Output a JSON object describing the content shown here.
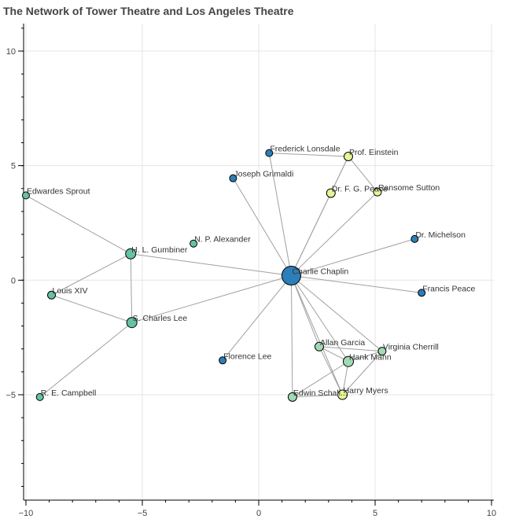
{
  "chart_data": {
    "type": "network",
    "title": "The Network of Tower Theatre and Los Angeles Theatre",
    "xlim": [
      -10.1,
      10.1
    ],
    "ylim": [
      -9.6,
      11.2
    ],
    "x_ticks": [
      -10,
      -5,
      0,
      5,
      10
    ],
    "y_ticks": [
      -5,
      0,
      5,
      10
    ],
    "x_tick_labels": [
      "−10",
      "−5",
      "0",
      "5",
      "10"
    ],
    "y_tick_labels": [
      "−5",
      "0",
      "5",
      "10"
    ],
    "grid": true,
    "nodes": [
      {
        "id": "Charlie Chaplin",
        "label": "Charlie Chaplin",
        "x": 1.4,
        "y": 0.2,
        "size": 12,
        "color": "#2c7fb8"
      },
      {
        "id": "Frederick Lonsdale",
        "label": "Frederick Lonsdale",
        "x": 0.45,
        "y": 5.55,
        "size": 4.5,
        "color": "#2c7fb8"
      },
      {
        "id": "Prof. Einstein",
        "label": "Prof. Einstein",
        "x": 3.85,
        "y": 5.4,
        "size": 5.5,
        "color": "#e6f598"
      },
      {
        "id": "Joseph Grimaldi",
        "label": "Joseph Grimaldi",
        "x": -1.1,
        "y": 4.45,
        "size": 4.5,
        "color": "#2c7fb8"
      },
      {
        "id": "Dr. F. G. Peace",
        "label": "Dr. F. G. Peace",
        "x": 3.1,
        "y": 3.8,
        "size": 5.5,
        "color": "#e6f598"
      },
      {
        "id": "Ransome Sutton",
        "label": "Ransome Sutton",
        "x": 5.1,
        "y": 3.85,
        "size": 5,
        "color": "#e6f598"
      },
      {
        "id": "Edwardes Sprout",
        "label": "Edwardes Sprout",
        "x": -10.0,
        "y": 3.7,
        "size": 4.5,
        "color": "#66c2a4"
      },
      {
        "id": "Dr. Michelson",
        "label": "Dr. Michelson",
        "x": 6.7,
        "y": 1.8,
        "size": 4.5,
        "color": "#2c7fb8"
      },
      {
        "id": "N. P. Alexander",
        "label": "N. P. Alexander",
        "x": -2.8,
        "y": 1.6,
        "size": 4.5,
        "color": "#66c2a4"
      },
      {
        "id": "H. L. Gumbiner",
        "label": "H. L. Gumbiner",
        "x": -5.5,
        "y": 1.15,
        "size": 6.5,
        "color": "#66c2a4"
      },
      {
        "id": "Louis XIV",
        "label": "Louis XIV",
        "x": -8.9,
        "y": -0.65,
        "size": 5,
        "color": "#66c2a4"
      },
      {
        "id": "Francis Peace",
        "label": "Francis Peace",
        "x": 7.0,
        "y": -0.55,
        "size": 4.5,
        "color": "#2c7fb8"
      },
      {
        "id": "S. Charles Lee",
        "label": "S. Charles Lee",
        "x": -5.45,
        "y": -1.85,
        "size": 6.5,
        "color": "#66c2a4"
      },
      {
        "id": "Allan Garcia",
        "label": "Allan Garcia",
        "x": 2.6,
        "y": -2.9,
        "size": 5.5,
        "color": "#a1dab4"
      },
      {
        "id": "Virginia Cherrill",
        "label": "Virginia Cherrill",
        "x": 5.3,
        "y": -3.1,
        "size": 5,
        "color": "#a1dab4"
      },
      {
        "id": "Hank Mann",
        "label": "Hank Mann",
        "x": 3.85,
        "y": -3.55,
        "size": 6.5,
        "color": "#a1dab4"
      },
      {
        "id": "Florence Lee",
        "label": "Florence Lee",
        "x": -1.55,
        "y": -3.5,
        "size": 4.5,
        "color": "#2c7fb8"
      },
      {
        "id": "R. E. Campbell",
        "label": "R. E. Campbell",
        "x": -9.4,
        "y": -5.1,
        "size": 4.5,
        "color": "#66c2a4"
      },
      {
        "id": "Edwin Schallert",
        "label": "Edwin Schall...",
        "x": 1.45,
        "y": -5.1,
        "size": 5.5,
        "color": "#a1dab4"
      },
      {
        "id": "Harry Myers",
        "label": "Harry Myers",
        "x": 3.6,
        "y": -5.0,
        "size": 6,
        "color": "#e6f598"
      }
    ],
    "edges": [
      [
        "Charlie Chaplin",
        "Frederick Lonsdale"
      ],
      [
        "Charlie Chaplin",
        "Prof. Einstein"
      ],
      [
        "Charlie Chaplin",
        "Joseph Grimaldi"
      ],
      [
        "Charlie Chaplin",
        "Dr. F. G. Peace"
      ],
      [
        "Charlie Chaplin",
        "Ransome Sutton"
      ],
      [
        "Charlie Chaplin",
        "Dr. Michelson"
      ],
      [
        "Charlie Chaplin",
        "H. L. Gumbiner"
      ],
      [
        "Charlie Chaplin",
        "Francis Peace"
      ],
      [
        "Charlie Chaplin",
        "S. Charles Lee"
      ],
      [
        "Charlie Chaplin",
        "Allan Garcia"
      ],
      [
        "Charlie Chaplin",
        "Virginia Cherrill"
      ],
      [
        "Charlie Chaplin",
        "Hank Mann"
      ],
      [
        "Charlie Chaplin",
        "Florence Lee"
      ],
      [
        "Charlie Chaplin",
        "Edwin Schallert"
      ],
      [
        "Charlie Chaplin",
        "Harry Myers"
      ],
      [
        "Frederick Lonsdale",
        "Prof. Einstein"
      ],
      [
        "Prof. Einstein",
        "Dr. F. G. Peace"
      ],
      [
        "Prof. Einstein",
        "Ransome Sutton"
      ],
      [
        "H. L. Gumbiner",
        "Edwardes Sprout"
      ],
      [
        "H. L. Gumbiner",
        "Louis XIV"
      ],
      [
        "H. L. Gumbiner",
        "S. Charles Lee"
      ],
      [
        "Louis XIV",
        "S. Charles Lee"
      ],
      [
        "S. Charles Lee",
        "R. E. Campbell"
      ],
      [
        "Allan Garcia",
        "Hank Mann"
      ],
      [
        "Allan Garcia",
        "Virginia Cherrill"
      ],
      [
        "Hank Mann",
        "Virginia Cherrill"
      ],
      [
        "Hank Mann",
        "Harry Myers"
      ],
      [
        "Hank Mann",
        "Edwin Schallert"
      ],
      [
        "Allan Garcia",
        "Harry Myers"
      ],
      [
        "Virginia Cherrill",
        "Harry Myers"
      ],
      [
        "Edwin Schallert",
        "Harry Myers"
      ]
    ]
  }
}
